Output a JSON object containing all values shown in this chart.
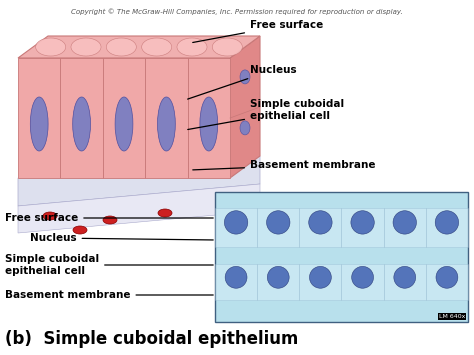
{
  "title": "(b)  Simple cuboidal epithelium",
  "copyright_text": "Copyright © The McGraw-Hill Companies, Inc. Permission required for reproduction or display.",
  "background_color": "#ffffff",
  "title_fontsize": 12,
  "title_color": "#000000",
  "copyright_fontsize": 5.0,
  "cell_color": "#f0a8a8",
  "cell_border_color": "#c87878",
  "cell_side_color": "#e08888",
  "nucleus_color": "#8080c0",
  "nucleus_border": "#5050a0",
  "top_bump_color": "#f8c0c0",
  "top_face_color": "#f0b0b0",
  "basement_color": "#dde0ee",
  "basement_border": "#aaaacc",
  "rbc_color": "#cc2020",
  "rbc_border": "#880000",
  "micro_bg": "#b8e0ec",
  "micro_cell_light": "#d8eef8",
  "micro_nuc_color": "#4060b0",
  "micro_nuc_border": "#203070",
  "micro_border": "#406080",
  "lm_label": "LM 640x"
}
